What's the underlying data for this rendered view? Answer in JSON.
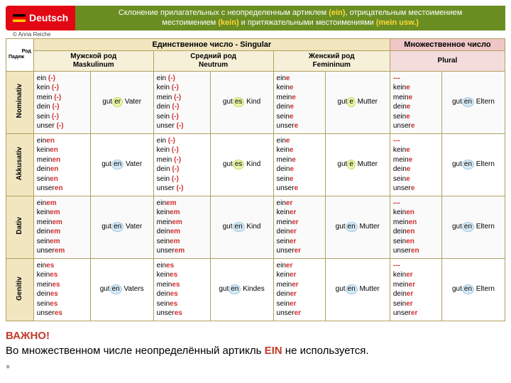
{
  "banner": {
    "brand": "Deutsch",
    "online": "ONLINE",
    "title_l1": "Склонение прилагательных с неопределенным артиклем ",
    "title_ein": "(ein)",
    "title_mid": ", отрицательным местоимением ",
    "title_kein": "(kein)",
    "title_mid2": " и притяжательными местоимениями ",
    "title_mein": "(mein usw.)"
  },
  "credit": "© Anna Reiche",
  "headers": {
    "singular": "Единственное число    -    Singular",
    "plural": "Множественное число",
    "rod": "Род",
    "padezh": "Падеж",
    "mask1": "Мужской род",
    "mask2": "Maskulinum",
    "neut1": "Средний род",
    "neut2": "Neutrum",
    "fem1": "Женский род",
    "fem2": "Femininum",
    "plural2": "Plural"
  },
  "cases": [
    "Nominativ",
    "Akkusativ",
    "Dativ",
    "Genitiv"
  ],
  "stems": [
    "ein",
    "kein",
    "mein",
    "dein",
    "sein",
    "unser"
  ],
  "cells": {
    "nom": {
      "m_end": [
        "(-)",
        "(-)",
        "(-)",
        "(-)",
        "(-)",
        "(-)"
      ],
      "n_end": [
        "(-)",
        "(-)",
        "(-)",
        "(-)",
        "(-)",
        "(-)"
      ],
      "f_end": [
        "e",
        "e",
        "e",
        "e",
        "e",
        "e"
      ],
      "p_end": [
        "---",
        "e",
        "e",
        "e",
        "e",
        "e"
      ],
      "m_ex_pre": "gut",
      "m_ex_suf": "er",
      "m_ex_noun": " Vater",
      "m_hl": "y",
      "n_ex_pre": "gut",
      "n_ex_suf": "es",
      "n_ex_noun": " Kind",
      "n_hl": "y",
      "f_ex_pre": "gut",
      "f_ex_suf": "e",
      "f_ex_noun": " Mutter",
      "f_hl": "y",
      "p_ex_pre": "gut",
      "p_ex_suf": "en",
      "p_ex_noun": " Eltern",
      "p_hl": "b"
    },
    "akk": {
      "m_end": [
        "en",
        "en",
        "en",
        "en",
        "en",
        "en"
      ],
      "n_end": [
        "(-)",
        "(-)",
        "(-)",
        "(-)",
        "(-)",
        "(-)"
      ],
      "f_end": [
        "e",
        "e",
        "e",
        "e",
        "e",
        "e"
      ],
      "p_end": [
        "---",
        "e",
        "e",
        "e",
        "e",
        "e"
      ],
      "m_ex_pre": "gut",
      "m_ex_suf": "en",
      "m_ex_noun": " Vater",
      "m_hl": "b",
      "n_ex_pre": "gut",
      "n_ex_suf": "es",
      "n_ex_noun": " Kind",
      "n_hl": "y",
      "f_ex_pre": "gut",
      "f_ex_suf": "e",
      "f_ex_noun": " Mutter",
      "f_hl": "y",
      "p_ex_pre": "gut",
      "p_ex_suf": "en",
      "p_ex_noun": " Eltern",
      "p_hl": "b"
    },
    "dat": {
      "m_end": [
        "em",
        "em",
        "em",
        "em",
        "em",
        "em"
      ],
      "n_end": [
        "em",
        "em",
        "em",
        "em",
        "em",
        "em"
      ],
      "f_end": [
        "er",
        "er",
        "er",
        "er",
        "er",
        "er"
      ],
      "p_end": [
        "---",
        "en",
        "en",
        "en",
        "en",
        "en"
      ],
      "m_ex_pre": "gut",
      "m_ex_suf": "en",
      "m_ex_noun": " Vater",
      "m_hl": "b",
      "n_ex_pre": "gut",
      "n_ex_suf": "en",
      "n_ex_noun": " Kind",
      "n_hl": "b",
      "f_ex_pre": "gut",
      "f_ex_suf": "en",
      "f_ex_noun": " Mutter",
      "f_hl": "b",
      "p_ex_pre": "gut",
      "p_ex_suf": "en",
      "p_ex_noun": " Eltern",
      "p_hl": "b"
    },
    "gen": {
      "m_end": [
        "es",
        "es",
        "es",
        "es",
        "es",
        "es"
      ],
      "n_end": [
        "es",
        "es",
        "es",
        "es",
        "es",
        "es"
      ],
      "f_end": [
        "er",
        "er",
        "er",
        "er",
        "er",
        "er"
      ],
      "p_end": [
        "---",
        "er",
        "er",
        "er",
        "er",
        "er"
      ],
      "m_ex_pre": "gut",
      "m_ex_suf": "en",
      "m_ex_noun": " Vaters",
      "m_hl": "b",
      "n_ex_pre": "gut",
      "n_ex_suf": "en",
      "n_ex_noun": " Kindes",
      "n_hl": "b",
      "f_ex_pre": "gut",
      "f_ex_suf": "en",
      "f_ex_noun": " Mutter",
      "f_hl": "b",
      "p_ex_pre": "gut",
      "p_ex_suf": "en",
      "p_ex_noun": " Eltern",
      "p_hl": "b"
    }
  },
  "note": {
    "important": "ВАЖНО!",
    "text1": "Во множественном числе неопределённый артикль ",
    "ein": "EIN",
    "text2": "  не используется."
  }
}
